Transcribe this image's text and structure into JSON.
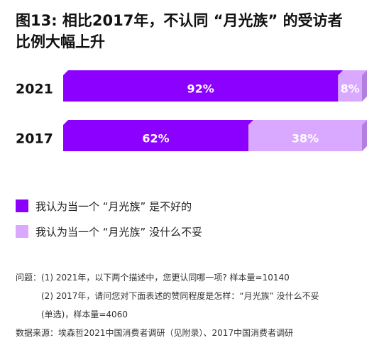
{
  "title_lines": [
    "图13: 相比2017年，不认同 “月光族” 的受访者",
    "比例大幅上升"
  ],
  "colors": {
    "series_1": "#8b00ff",
    "series_1_side": "#5c00a8",
    "series_2": "#d9a8ff",
    "series_2_side": "#b47de0"
  },
  "chart_data": {
    "type": "bar",
    "orientation": "horizontal",
    "stacked": true,
    "unit": "%",
    "categories": [
      "2021",
      "2017"
    ],
    "series": [
      {
        "name": "我认为当一个 “月光族” 是不好的",
        "values": [
          92,
          62
        ],
        "labels": [
          "92%",
          "62%"
        ]
      },
      {
        "name": "我认为当一个 “月光族” 没什么不妥",
        "values": [
          8,
          38
        ],
        "labels": [
          "8%",
          "38%"
        ]
      }
    ],
    "xlim": [
      0,
      100
    ],
    "grid": false,
    "legend_position": "bottom-left"
  },
  "notes": {
    "question_1": "问题：(1) 2021年，以下两个描述中，您更认同哪一项? 样本量=10140",
    "question_2a": "(2) 2017年，请问您对下面表述的赞同程度是怎样：“月光族” 没什么不妥",
    "question_2b": "(单选)，样本量=4060",
    "source": "数据来源：埃森哲2021中国消费者调研（见附录）、2017中国消费者调研"
  }
}
